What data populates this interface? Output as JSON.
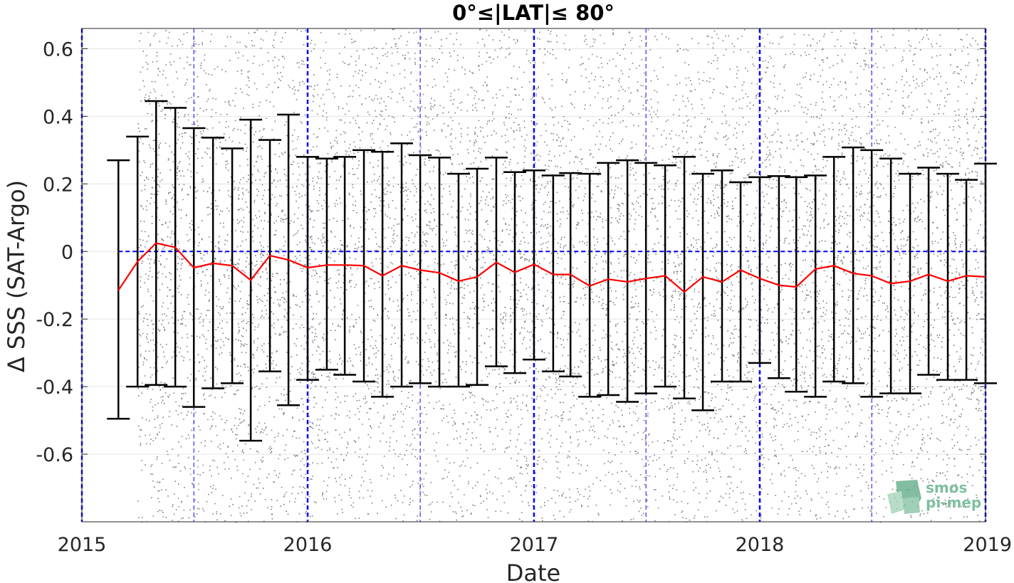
{
  "chart_data": {
    "type": "scatter",
    "title": "0°≤|LAT|≤ 80°",
    "xlabel": "Date",
    "ylabel": "Δ SSS (SAT-Argo)",
    "xlim": [
      "2015-01-01",
      "2019-01-01"
    ],
    "ylim": [
      -0.8,
      0.66
    ],
    "x_tick_labels": [
      "2015",
      "2016",
      "2017",
      "2018",
      "2019"
    ],
    "y_tick_labels": [
      "0.6",
      "0.4",
      "0.2",
      "0",
      "-0.2",
      "-0.4",
      "-0.6"
    ],
    "y_ticks": [
      0.6,
      0.4,
      0.2,
      0,
      -0.2,
      -0.4,
      -0.6
    ],
    "grid": true,
    "reference_line_y": 0,
    "scatter_date_range": [
      "2015-04",
      "2019-01"
    ],
    "monthly_dates": [
      "2015-03",
      "2015-04",
      "2015-05",
      "2015-06",
      "2015-07",
      "2015-08",
      "2015-09",
      "2015-10",
      "2015-11",
      "2015-12",
      "2016-01",
      "2016-02",
      "2016-03",
      "2016-04",
      "2016-05",
      "2016-06",
      "2016-07",
      "2016-08",
      "2016-09",
      "2016-10",
      "2016-11",
      "2016-12",
      "2017-01",
      "2017-02",
      "2017-03",
      "2017-04",
      "2017-05",
      "2017-06",
      "2017-07",
      "2017-08",
      "2017-09",
      "2017-10",
      "2017-11",
      "2017-12",
      "2018-01",
      "2018-02",
      "2018-03",
      "2018-04",
      "2018-05",
      "2018-06",
      "2018-07",
      "2018-08",
      "2018-09",
      "2018-10",
      "2018-11",
      "2018-12",
      "2019-01"
    ],
    "series": [
      {
        "name": "monthly mean",
        "values": [
          -0.115,
          -0.03,
          0.025,
          0.012,
          -0.048,
          -0.035,
          -0.042,
          -0.085,
          -0.012,
          -0.025,
          -0.048,
          -0.04,
          -0.04,
          -0.042,
          -0.072,
          -0.042,
          -0.055,
          -0.063,
          -0.088,
          -0.075,
          -0.032,
          -0.062,
          -0.038,
          -0.068,
          -0.068,
          -0.102,
          -0.082,
          -0.09,
          -0.08,
          -0.072,
          -0.12,
          -0.075,
          -0.09,
          -0.055,
          -0.08,
          -0.1,
          -0.105,
          -0.052,
          -0.042,
          -0.065,
          -0.072,
          -0.095,
          -0.088,
          -0.068,
          -0.088,
          -0.072,
          -0.075
        ]
      }
    ],
    "error_upper": [
      0.27,
      0.34,
      0.445,
      0.425,
      0.365,
      0.337,
      0.305,
      0.39,
      0.33,
      0.405,
      0.28,
      0.275,
      0.28,
      0.3,
      0.295,
      0.32,
      0.285,
      0.278,
      0.23,
      0.245,
      0.278,
      0.235,
      0.24,
      0.225,
      0.232,
      0.23,
      0.262,
      0.27,
      0.262,
      0.255,
      0.28,
      0.23,
      0.24,
      0.205,
      0.22,
      0.223,
      0.22,
      0.225,
      0.28,
      0.308,
      0.3,
      0.275,
      0.23,
      0.248,
      0.23,
      0.212,
      0.26
    ],
    "error_lower": [
      -0.495,
      -0.4,
      -0.395,
      -0.4,
      -0.46,
      -0.405,
      -0.39,
      -0.56,
      -0.355,
      -0.455,
      -0.38,
      -0.35,
      -0.365,
      -0.385,
      -0.43,
      -0.4,
      -0.39,
      -0.4,
      -0.4,
      -0.395,
      -0.34,
      -0.36,
      -0.32,
      -0.355,
      -0.37,
      -0.43,
      -0.425,
      -0.445,
      -0.42,
      -0.4,
      -0.435,
      -0.47,
      -0.385,
      -0.385,
      -0.33,
      -0.375,
      -0.415,
      -0.43,
      -0.385,
      -0.39,
      -0.43,
      -0.42,
      -0.42,
      -0.365,
      -0.38,
      -0.38,
      -0.39
    ],
    "colors": {
      "scatter": "#808080",
      "mean_line": "#ff0000",
      "error_bars": "#000000",
      "year_lines": "#0000ff",
      "axes": "#262626",
      "grid": "#e3e3e3",
      "logo": "#7fbf9f"
    }
  },
  "logo": {
    "line1": "smos",
    "line2": "pi-mep",
    "icon": "map-mosaic-icon"
  }
}
